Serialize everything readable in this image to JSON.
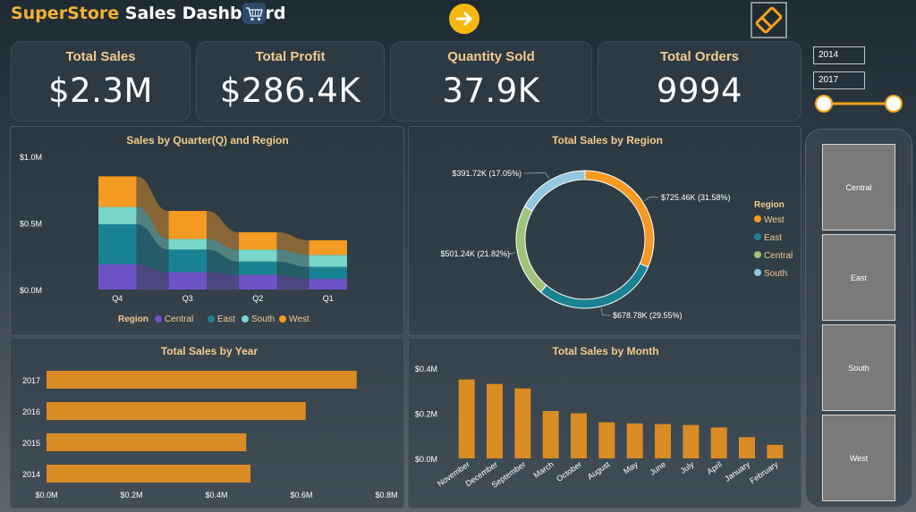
{
  "header": {
    "brand": "SuperStore",
    "title_rest": " Sales Dashboard",
    "cart_icon": "shopping-cart-icon",
    "next_icon": "arrow-right-icon",
    "clear_icon": "eraser-icon"
  },
  "kpis": [
    {
      "label": "Total Sales",
      "value": "$2.3M"
    },
    {
      "label": "Total Profit",
      "value": "$286.4K"
    },
    {
      "label": "Quantity Sold",
      "value": "37.9K"
    },
    {
      "label": "Total Orders",
      "value": "9994"
    }
  ],
  "year_filter": {
    "start": "2014",
    "end": "2017",
    "range_fraction": [
      0,
      1
    ]
  },
  "region_slicer": [
    "Central",
    "East",
    "South",
    "West"
  ],
  "colors": {
    "west": "#f59a23",
    "east": "#1a8393",
    "central": "#6e53c7",
    "south": "#7ad6c8",
    "donut_central": "#9fc378",
    "donut_south": "#92c7e0",
    "bar": "#d98b24",
    "label": "#f3c98f"
  },
  "chart_data": [
    {
      "type": "area",
      "title": "Sales by Quarter(Q) and Region",
      "categories": [
        "Q4",
        "Q3",
        "Q2",
        "Q1"
      ],
      "yticks": [
        "$0.0M",
        "$0.5M",
        "$1.0M"
      ],
      "ylim": [
        0,
        1.0
      ],
      "legend_title": "Region",
      "legend": [
        "Central",
        "East",
        "South",
        "West"
      ],
      "series": [
        {
          "name": "Central",
          "values": [
            0.19,
            0.13,
            0.11,
            0.08
          ]
        },
        {
          "name": "East",
          "values": [
            0.3,
            0.17,
            0.1,
            0.09
          ]
        },
        {
          "name": "South",
          "values": [
            0.13,
            0.08,
            0.09,
            0.09
          ]
        },
        {
          "name": "West",
          "values": [
            0.23,
            0.21,
            0.13,
            0.11
          ]
        }
      ]
    },
    {
      "type": "pie",
      "title": "Total Sales by Region",
      "legend_title": "Region",
      "slices": [
        {
          "name": "West",
          "value": 725.46,
          "label": "$725.46K (31.58%)"
        },
        {
          "name": "East",
          "value": 678.78,
          "label": "$678.78K (29.55%)"
        },
        {
          "name": "Central",
          "value": 501.24,
          "label": "$501.24K (21.82%)"
        },
        {
          "name": "South",
          "value": 391.72,
          "label": "$391.72K (17.05%)"
        }
      ]
    },
    {
      "type": "bar",
      "title": "Total Sales by Year",
      "categories": [
        "2017",
        "2016",
        "2015",
        "2014"
      ],
      "values": [
        0.73,
        0.61,
        0.47,
        0.48
      ],
      "xticks": [
        "$0.0M",
        "$0.2M",
        "$0.4M",
        "$0.6M",
        "$0.8M"
      ],
      "xlim": [
        0,
        0.8
      ]
    },
    {
      "type": "bar",
      "title": "Total Sales by Month",
      "categories": [
        "November",
        "December",
        "September",
        "March",
        "October",
        "August",
        "May",
        "June",
        "July",
        "April",
        "January",
        "February"
      ],
      "values": [
        0.35,
        0.33,
        0.31,
        0.21,
        0.2,
        0.16,
        0.155,
        0.152,
        0.148,
        0.137,
        0.094,
        0.06
      ],
      "yticks": [
        "$0.0M",
        "$0.2M",
        "$0.4M"
      ],
      "ylim": [
        0,
        0.4
      ]
    }
  ]
}
